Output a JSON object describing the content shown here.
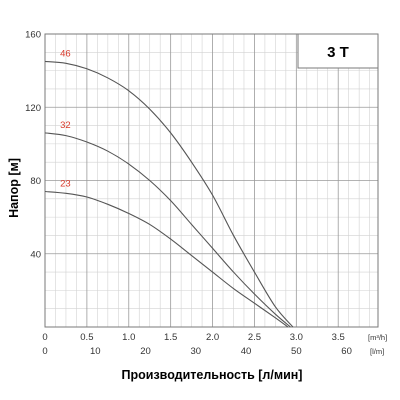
{
  "chart_data": {
    "type": "line",
    "title": "3 T",
    "ylabel": "Напор [м]",
    "xlabel": "Производительность [л/мин]",
    "x_unit_primary": "[m³/h]",
    "x_unit_secondary": "[l/m]",
    "xlim": [
      0,
      3.975
    ],
    "ylim": [
      0,
      160
    ],
    "x_ticks": [
      "0",
      "0.5",
      "1.0",
      "1.5",
      "2.0",
      "2.5",
      "3.0",
      "3.5"
    ],
    "x_ticks_lmin": [
      "0",
      "10",
      "20",
      "30",
      "40",
      "50",
      "60"
    ],
    "y_ticks": [
      "40",
      "80",
      "120",
      "160"
    ],
    "grid": true,
    "series": [
      {
        "name": "46",
        "color": "#555555",
        "points": [
          [
            0,
            145
          ],
          [
            0.25,
            144
          ],
          [
            0.5,
            141
          ],
          [
            0.75,
            136
          ],
          [
            1.0,
            129
          ],
          [
            1.25,
            119
          ],
          [
            1.5,
            106
          ],
          [
            1.75,
            90
          ],
          [
            2.0,
            72
          ],
          [
            2.25,
            50
          ],
          [
            2.5,
            30
          ],
          [
            2.75,
            11
          ],
          [
            2.96,
            0
          ]
        ]
      },
      {
        "name": "32",
        "color": "#555555",
        "points": [
          [
            0,
            106
          ],
          [
            0.25,
            104.5
          ],
          [
            0.5,
            101
          ],
          [
            0.75,
            96
          ],
          [
            1.0,
            89
          ],
          [
            1.25,
            80
          ],
          [
            1.5,
            69
          ],
          [
            1.75,
            56
          ],
          [
            2.0,
            43
          ],
          [
            2.25,
            30
          ],
          [
            2.5,
            18
          ],
          [
            2.75,
            7
          ],
          [
            2.93,
            0
          ]
        ]
      },
      {
        "name": "23",
        "color": "#555555",
        "points": [
          [
            0,
            74
          ],
          [
            0.25,
            73
          ],
          [
            0.5,
            71
          ],
          [
            0.75,
            67
          ],
          [
            1.0,
            62
          ],
          [
            1.25,
            56
          ],
          [
            1.5,
            48
          ],
          [
            1.75,
            39
          ],
          [
            2.0,
            30
          ],
          [
            2.25,
            21
          ],
          [
            2.5,
            13
          ],
          [
            2.75,
            5
          ],
          [
            2.9,
            0
          ]
        ]
      }
    ]
  }
}
